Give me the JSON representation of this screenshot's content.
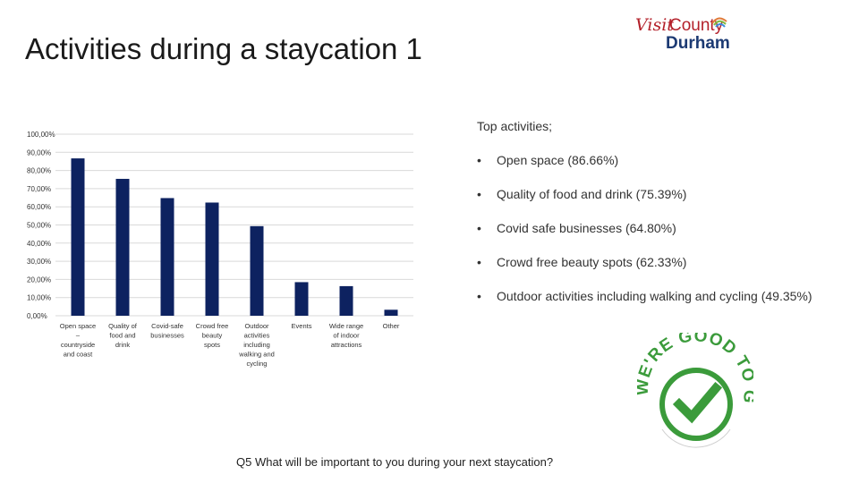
{
  "slide": {
    "title": "Activities during a staycation 1",
    "question": "Q5 What will be important to you during your next staycation?"
  },
  "logo": {
    "visit": "Visit",
    "county": "County",
    "durham": "Durham"
  },
  "top_activities": {
    "heading": "Top activities;",
    "items": [
      "Open space (86.66%)",
      "Quality of food and drink (75.39%)",
      "Covid safe businesses (64.80%)",
      "Crowd free beauty spots (62.33%)",
      "Outdoor activities including walking and cycling (49.35%)"
    ]
  },
  "badge": {
    "text": "WE'RE GOOD TO GO",
    "icon": "checkmark-icon"
  },
  "colors": {
    "bar": "#0d2260",
    "grid": "#d9d9d9",
    "badge_green": "#3b9b3b"
  },
  "chart_data": {
    "type": "bar",
    "categories": [
      [
        "Open space",
        "–",
        "countryside",
        "and coast"
      ],
      [
        "Quality of",
        "food and",
        "drink"
      ],
      [
        "Covid-safe",
        "businesses"
      ],
      [
        "Crowd free",
        "beauty",
        "spots"
      ],
      [
        "Outdoor",
        "activities",
        "including",
        "walking and",
        "cycling"
      ],
      [
        "Events"
      ],
      [
        "Wide range",
        "of indoor",
        "attractions"
      ],
      [
        "Other"
      ]
    ],
    "values": [
      86.66,
      75.39,
      64.8,
      62.33,
      49.35,
      18.5,
      16.3,
      3.3
    ],
    "ylim": [
      0,
      100
    ],
    "yticks": [
      "0,00%",
      "10,00%",
      "20,00%",
      "30,00%",
      "40,00%",
      "50,00%",
      "60,00%",
      "70,00%",
      "80,00%",
      "90,00%",
      "100,00%"
    ],
    "grid": true,
    "legend": "none"
  }
}
